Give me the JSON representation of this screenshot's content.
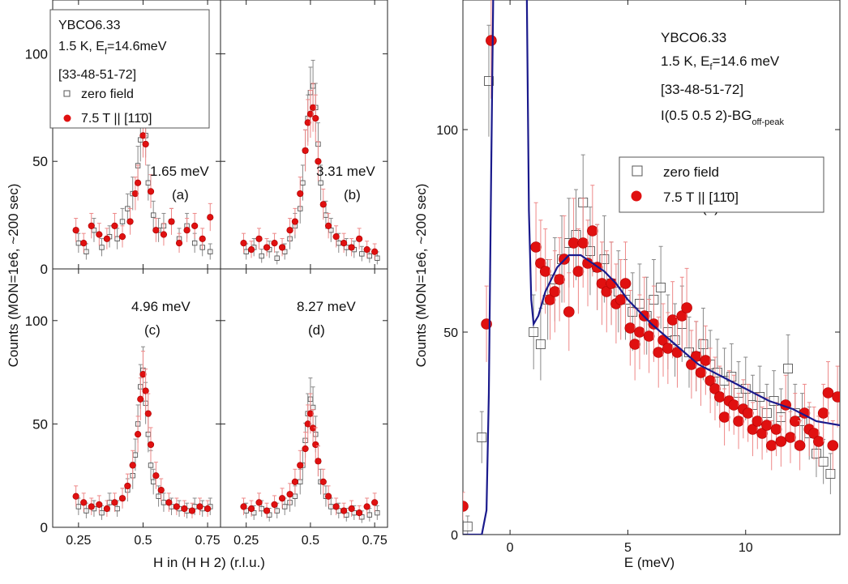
{
  "figure": {
    "left_ylabel": "Counts (MON=1e6, ~200 sec)",
    "left_xlabel": "H in (H H 2) (r.l.u.)",
    "right_ylabel": "Counts (MON=1e6, ~200 sec)",
    "right_xlabel": "E (meV)"
  },
  "legend_left": {
    "line1": "YBCO6.33",
    "line2": "1.5 K, E",
    "line2_sub": "f",
    "line2_rest": "=14.6meV",
    "line3": "[33-48-51-72]",
    "zero_field": "zero field",
    "field": "7.5 T || [11̄0]"
  },
  "legend_right": {
    "line1": "YBCO6.33",
    "line2": "1.5 K, E",
    "line2_sub": "f",
    "line2_rest": "=14.6 meV",
    "line3": "[33-48-51-72]",
    "line4": "I(0.5 0.5 2)-BG",
    "line4_sub": "off-peak",
    "zero_field": "zero field",
    "field": "7.5 T || [11̄0]"
  },
  "colors": {
    "zero_field": "#555555",
    "field": "#e01010",
    "fit": "#1a1a8c"
  },
  "chart_data": [
    {
      "type": "scatter",
      "panel": "a",
      "label": "(a)",
      "energy_label": "1.65 meV",
      "xlim": [
        0.15,
        0.8
      ],
      "ylim": [
        0,
        125
      ],
      "xticks": [
        0.25,
        0.5,
        0.75
      ],
      "yticks": [
        0,
        50,
        100
      ],
      "series": [
        {
          "name": "zero field",
          "x": [
            0.25,
            0.28,
            0.31,
            0.34,
            0.37,
            0.4,
            0.42,
            0.44,
            0.46,
            0.48,
            0.49,
            0.5,
            0.51,
            0.52,
            0.54,
            0.56,
            0.58,
            0.61,
            0.64,
            0.67,
            0.7,
            0.73,
            0.76
          ],
          "y": [
            12,
            8,
            18,
            10,
            15,
            14,
            22,
            28,
            35,
            48,
            60,
            68,
            62,
            40,
            25,
            18,
            20,
            22,
            14,
            20,
            12,
            10,
            8
          ]
        },
        {
          "name": "7.5 T || [11̄0]",
          "x": [
            0.24,
            0.27,
            0.3,
            0.33,
            0.36,
            0.39,
            0.42,
            0.45,
            0.47,
            0.48,
            0.5,
            0.51,
            0.53,
            0.55,
            0.58,
            0.61,
            0.64,
            0.67,
            0.7,
            0.73,
            0.76
          ],
          "y": [
            18,
            12,
            20,
            16,
            14,
            20,
            15,
            22,
            35,
            40,
            62,
            58,
            36,
            18,
            16,
            22,
            12,
            18,
            20,
            14,
            24
          ]
        }
      ]
    },
    {
      "type": "scatter",
      "panel": "b",
      "label": "(b)",
      "energy_label": "3.31 meV",
      "xlim": [
        0.15,
        0.8
      ],
      "ylim": [
        0,
        125
      ],
      "xticks": [
        0.25,
        0.5,
        0.75
      ],
      "yticks": [
        0,
        50,
        100
      ],
      "series": [
        {
          "name": "zero field",
          "x": [
            0.25,
            0.28,
            0.31,
            0.34,
            0.37,
            0.4,
            0.42,
            0.44,
            0.46,
            0.47,
            0.48,
            0.49,
            0.5,
            0.51,
            0.52,
            0.53,
            0.54,
            0.56,
            0.58,
            0.61,
            0.64,
            0.67,
            0.7,
            0.73,
            0.76
          ],
          "y": [
            8,
            10,
            6,
            9,
            5,
            8,
            14,
            20,
            28,
            40,
            55,
            70,
            82,
            85,
            75,
            58,
            40,
            25,
            18,
            12,
            10,
            9,
            7,
            6,
            5
          ]
        },
        {
          "name": "7.5 T || [11̄0]",
          "x": [
            0.24,
            0.27,
            0.3,
            0.33,
            0.36,
            0.39,
            0.42,
            0.44,
            0.46,
            0.48,
            0.49,
            0.5,
            0.51,
            0.52,
            0.53,
            0.55,
            0.57,
            0.6,
            0.63,
            0.66,
            0.69,
            0.72,
            0.75
          ],
          "y": [
            12,
            9,
            14,
            10,
            12,
            10,
            18,
            22,
            35,
            55,
            68,
            72,
            75,
            70,
            50,
            30,
            20,
            15,
            12,
            10,
            14,
            9,
            8
          ]
        }
      ]
    },
    {
      "type": "scatter",
      "panel": "c",
      "label": "(c)",
      "energy_label": "4.96 meV",
      "xlim": [
        0.15,
        0.8
      ],
      "ylim": [
        0,
        125
      ],
      "xticks": [
        0.25,
        0.5,
        0.75
      ],
      "yticks": [
        0,
        50,
        100
      ],
      "series": [
        {
          "name": "zero field",
          "x": [
            0.25,
            0.28,
            0.31,
            0.34,
            0.37,
            0.4,
            0.42,
            0.44,
            0.46,
            0.47,
            0.48,
            0.49,
            0.5,
            0.51,
            0.52,
            0.53,
            0.54,
            0.56,
            0.58,
            0.61,
            0.64,
            0.67,
            0.7,
            0.73,
            0.76
          ],
          "y": [
            10,
            8,
            9,
            7,
            12,
            9,
            14,
            18,
            25,
            35,
            50,
            68,
            76,
            60,
            45,
            30,
            22,
            15,
            12,
            10,
            9,
            8,
            10,
            9,
            10
          ]
        },
        {
          "name": "7.5 T || [11̄0]",
          "x": [
            0.24,
            0.27,
            0.3,
            0.33,
            0.36,
            0.39,
            0.42,
            0.44,
            0.46,
            0.48,
            0.49,
            0.5,
            0.51,
            0.52,
            0.53,
            0.55,
            0.57,
            0.6,
            0.63,
            0.66,
            0.69,
            0.72,
            0.75
          ],
          "y": [
            15,
            12,
            10,
            11,
            9,
            12,
            14,
            20,
            30,
            45,
            62,
            74,
            66,
            55,
            40,
            25,
            18,
            12,
            10,
            9,
            8,
            10,
            9
          ]
        }
      ]
    },
    {
      "type": "scatter",
      "panel": "d",
      "label": "(d)",
      "energy_label": "8.27 meV",
      "xlim": [
        0.15,
        0.8
      ],
      "ylim": [
        0,
        125
      ],
      "xticks": [
        0.25,
        0.5,
        0.75
      ],
      "yticks": [
        0,
        50,
        100
      ],
      "series": [
        {
          "name": "zero field",
          "x": [
            0.25,
            0.28,
            0.31,
            0.34,
            0.37,
            0.4,
            0.42,
            0.44,
            0.46,
            0.47,
            0.48,
            0.49,
            0.5,
            0.51,
            0.52,
            0.53,
            0.54,
            0.56,
            0.58,
            0.61,
            0.64,
            0.67,
            0.7,
            0.73,
            0.76
          ],
          "y": [
            8,
            7,
            9,
            6,
            8,
            10,
            12,
            15,
            22,
            30,
            42,
            55,
            62,
            58,
            45,
            32,
            22,
            15,
            10,
            8,
            6,
            7,
            5,
            6,
            7
          ]
        },
        {
          "name": "7.5 T || [11̄0]",
          "x": [
            0.24,
            0.27,
            0.3,
            0.33,
            0.36,
            0.39,
            0.42,
            0.44,
            0.46,
            0.48,
            0.49,
            0.5,
            0.51,
            0.52,
            0.53,
            0.55,
            0.57,
            0.6,
            0.63,
            0.66,
            0.69,
            0.72,
            0.75
          ],
          "y": [
            10,
            9,
            12,
            8,
            11,
            14,
            16,
            22,
            30,
            38,
            50,
            55,
            48,
            40,
            32,
            22,
            15,
            10,
            8,
            9,
            7,
            10,
            12
          ]
        }
      ]
    },
    {
      "type": "scatter",
      "panel": "e",
      "label": "(e)",
      "xlim": [
        -2,
        14
      ],
      "ylim": [
        0,
        132
      ],
      "xticks": [
        0,
        5,
        10
      ],
      "yticks": [
        0,
        50,
        100
      ],
      "series": [
        {
          "name": "zero field",
          "x": [
            -1.8,
            -1.2,
            -0.9,
            1.0,
            1.3,
            1.6,
            1.9,
            2.2,
            2.5,
            2.8,
            3.1,
            3.4,
            3.7,
            4.0,
            4.3,
            4.6,
            4.9,
            5.2,
            5.5,
            5.8,
            6.1,
            6.4,
            6.7,
            7.0,
            7.3,
            7.6,
            7.9,
            8.2,
            8.5,
            8.8,
            9.1,
            9.4,
            9.7,
            10.0,
            10.3,
            10.6,
            10.9,
            11.2,
            11.5,
            11.8,
            12.1,
            12.4,
            12.7,
            13.0,
            13.3,
            13.6
          ],
          "y": [
            2,
            24,
            112,
            50,
            47,
            58,
            63,
            68,
            72,
            74,
            82,
            70,
            66,
            68,
            62,
            60,
            58,
            55,
            57,
            54,
            58,
            61,
            50,
            48,
            52,
            45,
            44,
            47,
            42,
            40,
            38,
            39,
            35,
            36,
            32,
            34,
            30,
            33,
            29,
            41,
            30,
            28,
            25,
            20,
            18,
            15
          ]
        },
        {
          "name": "7.5 T || [11̄0]",
          "x": [
            -2.0,
            -1.0,
            -0.8,
            1.1,
            1.3,
            1.5,
            1.7,
            1.9,
            2.1,
            2.3,
            2.5,
            2.7,
            2.9,
            3.1,
            3.3,
            3.5,
            3.7,
            3.9,
            4.1,
            4.3,
            4.5,
            4.7,
            4.9,
            5.1,
            5.3,
            5.5,
            5.7,
            5.9,
            6.1,
            6.3,
            6.5,
            6.7,
            6.9,
            7.1,
            7.3,
            7.5,
            7.7,
            7.9,
            8.1,
            8.3,
            8.5,
            8.7,
            8.9,
            9.1,
            9.3,
            9.5,
            9.7,
            9.9,
            10.1,
            10.3,
            10.5,
            10.7,
            10.9,
            11.1,
            11.3,
            11.5,
            11.7,
            11.9,
            12.1,
            12.3,
            12.5,
            12.7,
            12.9,
            13.1,
            13.3,
            13.5,
            13.7,
            13.9
          ],
          "y": [
            7,
            52,
            122,
            71,
            67,
            65,
            58,
            60,
            63,
            68,
            55,
            72,
            65,
            72,
            67,
            75,
            66,
            62,
            60,
            62,
            57,
            58,
            62,
            51,
            47,
            50,
            54,
            49,
            52,
            45,
            48,
            46,
            53,
            45,
            54,
            56,
            42,
            44,
            40,
            43,
            38,
            36,
            34,
            29,
            33,
            32,
            28,
            31,
            30,
            26,
            28,
            25,
            27,
            22,
            26,
            23,
            32,
            24,
            28,
            22,
            30,
            26,
            25,
            23,
            30,
            35,
            22,
            34
          ]
        },
        {
          "name": "fit",
          "type": "line",
          "x": [
            -2.0,
            -1.2,
            -1.0,
            -0.9,
            -0.8,
            -0.7,
            0.7,
            0.8,
            0.9,
            1.0,
            1.2,
            1.5,
            2.0,
            2.5,
            3.0,
            3.5,
            4.0,
            4.5,
            5.0,
            6.0,
            7.0,
            8.0,
            9.0,
            10.0,
            11.0,
            12.0,
            13.0,
            14.0
          ],
          "y": [
            0,
            0,
            6,
            35,
            90,
            140,
            140,
            80,
            58,
            52,
            54,
            60,
            66,
            69,
            69,
            67,
            65,
            62,
            58,
            52,
            47,
            42,
            39,
            36,
            33,
            31,
            28,
            27
          ]
        }
      ]
    }
  ]
}
